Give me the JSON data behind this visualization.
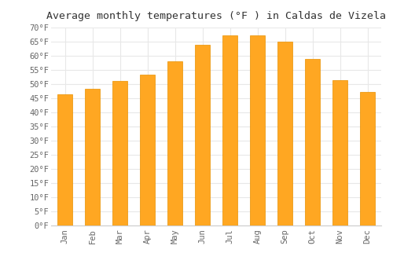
{
  "title": "Average monthly temperatures (°F ) in Caldas de Vizela",
  "months": [
    "Jan",
    "Feb",
    "Mar",
    "Apr",
    "May",
    "Jun",
    "Jul",
    "Aug",
    "Sep",
    "Oct",
    "Nov",
    "Dec"
  ],
  "values": [
    46.4,
    48.2,
    51.1,
    53.2,
    58.1,
    64.0,
    67.3,
    67.1,
    65.1,
    59.0,
    51.3,
    47.1
  ],
  "bar_color": "#FFA722",
  "bar_edge_color": "#E89000",
  "background_color": "#FFFFFF",
  "grid_color": "#E8E8E8",
  "ylim": [
    0,
    70
  ],
  "yticks": [
    0,
    5,
    10,
    15,
    20,
    25,
    30,
    35,
    40,
    45,
    50,
    55,
    60,
    65,
    70
  ],
  "title_fontsize": 9.5,
  "tick_fontsize": 7.5,
  "title_font": "monospace",
  "bar_width": 0.55
}
